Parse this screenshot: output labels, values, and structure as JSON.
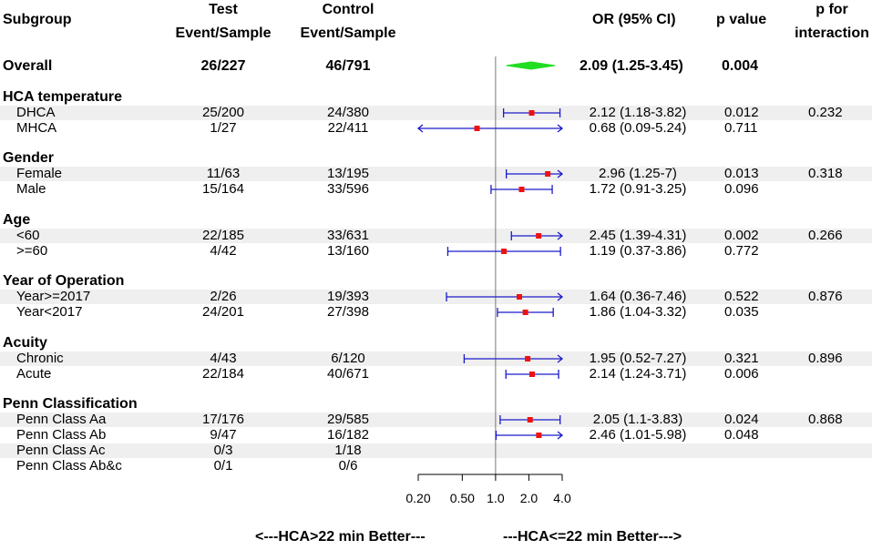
{
  "headers": {
    "subgroup": "Subgroup",
    "test_line1": "Test",
    "test_line2": "Event/Sample",
    "control_line1": "Control",
    "control_line2": "Event/Sample",
    "or": "OR (95% CI)",
    "pvalue": "p value",
    "pint_line1": "p for",
    "pint_line2": "interaction"
  },
  "footer": {
    "left": "<---HCA>22 min Better---",
    "right": "---HCA<=22 min Better--->"
  },
  "colors": {
    "point": "#ee1111",
    "ci_line": "#1a1acc",
    "diamond": "#22dd22",
    "band": "#efefef",
    "ref_line": "#777777"
  },
  "chart_data": {
    "type": "forest",
    "scale": "log",
    "xlim": [
      0.2,
      4.0
    ],
    "xticks": [
      0.2,
      0.5,
      1.0,
      2.0,
      4.0
    ],
    "xtick_labels": [
      "0.20",
      "0.50",
      "1.0",
      "2.0",
      "4.0"
    ],
    "reference": 1.0,
    "overall": {
      "label": "Overall",
      "test": "26/227",
      "control": "46/791",
      "or": 2.09,
      "lo": 1.25,
      "hi": 3.45,
      "or_text": "2.09 (1.25-3.45)",
      "p": "0.004"
    },
    "groups": [
      {
        "title": "HCA temperature",
        "p_interaction": "0.232",
        "rows": [
          {
            "label": "DHCA",
            "test": "25/200",
            "control": "24/380",
            "or": 2.12,
            "lo": 1.18,
            "hi": 3.82,
            "or_text": "2.12 (1.18-3.82)",
            "p": "0.012"
          },
          {
            "label": "MHCA",
            "test": "1/27",
            "control": "22/411",
            "or": 0.68,
            "lo": 0.09,
            "hi": 5.24,
            "or_text": "0.68 (0.09-5.24)",
            "p": "0.711"
          }
        ]
      },
      {
        "title": "Gender",
        "p_interaction": "0.318",
        "rows": [
          {
            "label": "Female",
            "test": "11/63",
            "control": "13/195",
            "or": 2.96,
            "lo": 1.25,
            "hi": 7,
            "or_text": "2.96 (1.25-7)",
            "p": "0.013"
          },
          {
            "label": "Male",
            "test": "15/164",
            "control": "33/596",
            "or": 1.72,
            "lo": 0.91,
            "hi": 3.25,
            "or_text": "1.72 (0.91-3.25)",
            "p": "0.096"
          }
        ]
      },
      {
        "title": "Age",
        "p_interaction": "0.266",
        "rows": [
          {
            "label": "<60",
            "test": "22/185",
            "control": "33/631",
            "or": 2.45,
            "lo": 1.39,
            "hi": 4.31,
            "or_text": "2.45 (1.39-4.31)",
            "p": "0.002"
          },
          {
            "label": ">=60",
            "test": "4/42",
            "control": "13/160",
            "or": 1.19,
            "lo": 0.37,
            "hi": 3.86,
            "or_text": "1.19 (0.37-3.86)",
            "p": "0.772"
          }
        ]
      },
      {
        "title": "Year of Operation",
        "p_interaction": "0.876",
        "rows": [
          {
            "label": "Year>=2017",
            "test": "2/26",
            "control": "19/393",
            "or": 1.64,
            "lo": 0.36,
            "hi": 7.46,
            "or_text": "1.64 (0.36-7.46)",
            "p": "0.522"
          },
          {
            "label": "Year<2017",
            "test": "24/201",
            "control": "27/398",
            "or": 1.86,
            "lo": 1.04,
            "hi": 3.32,
            "or_text": "1.86 (1.04-3.32)",
            "p": "0.035"
          }
        ]
      },
      {
        "title": "Acuity",
        "p_interaction": "0.896",
        "rows": [
          {
            "label": "Chronic",
            "test": "4/43",
            "control": "6/120",
            "or": 1.95,
            "lo": 0.52,
            "hi": 7.27,
            "or_text": "1.95 (0.52-7.27)",
            "p": "0.321"
          },
          {
            "label": "Acute",
            "test": "22/184",
            "control": "40/671",
            "or": 2.14,
            "lo": 1.24,
            "hi": 3.71,
            "or_text": "2.14 (1.24-3.71)",
            "p": "0.006"
          }
        ]
      },
      {
        "title": "Penn Classification",
        "p_interaction": "0.868",
        "rows": [
          {
            "label": "Penn Class Aa",
            "test": "17/176",
            "control": "29/585",
            "or": 2.05,
            "lo": 1.1,
            "hi": 3.83,
            "or_text": "2.05 (1.1-3.83)",
            "p": "0.024"
          },
          {
            "label": "Penn Class Ab",
            "test": "9/47",
            "control": "16/182",
            "or": 2.46,
            "lo": 1.01,
            "hi": 5.98,
            "or_text": "2.46 (1.01-5.98)",
            "p": "0.048"
          },
          {
            "label": "Penn Class Ac",
            "test": "0/3",
            "control": "1/18",
            "or": null,
            "lo": null,
            "hi": null,
            "or_text": "",
            "p": ""
          },
          {
            "label": "Penn Class Ab&c",
            "test": "0/1",
            "control": "0/6",
            "or": null,
            "lo": null,
            "hi": null,
            "or_text": "",
            "p": ""
          }
        ]
      }
    ]
  }
}
